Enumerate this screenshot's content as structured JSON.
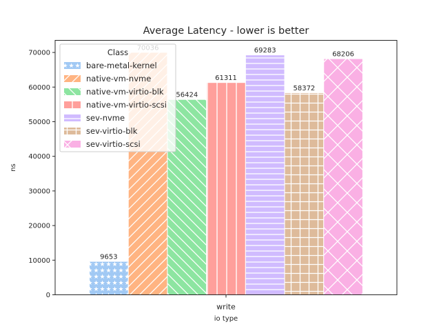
{
  "chart_data": {
    "type": "bar",
    "title": "Average Latency - lower is better",
    "xlabel": "io type",
    "ylabel": "ns",
    "categories": [
      "write"
    ],
    "ylim": [
      0,
      73500
    ],
    "yticks": [
      0,
      10000,
      20000,
      30000,
      40000,
      50000,
      60000,
      70000
    ],
    "grid": false,
    "legend": {
      "title": "Class",
      "placement": "top-left"
    },
    "series": [
      {
        "name": "bare-metal-kernel",
        "values": [
          9653
        ],
        "label": "9653",
        "color": "#a1c9f4",
        "hatch": "stars"
      },
      {
        "name": "native-vm-nvme",
        "values": [
          70036
        ],
        "label": "70036",
        "color": "#ffb482",
        "hatch": "forward-diagonal"
      },
      {
        "name": "native-vm-virtio-blk",
        "values": [
          56424
        ],
        "label": "56424",
        "color": "#8de5a1",
        "hatch": "back-diagonal"
      },
      {
        "name": "native-vm-virtio-scsi",
        "values": [
          61311
        ],
        "label": "61311",
        "color": "#ff9f9b",
        "hatch": "vertical"
      },
      {
        "name": "sev-nvme",
        "values": [
          69283
        ],
        "label": "69283",
        "color": "#d0bbff",
        "hatch": "horizontal"
      },
      {
        "name": "sev-virtio-blk",
        "values": [
          58372
        ],
        "label": "58372",
        "color": "#debb9b",
        "hatch": "grid"
      },
      {
        "name": "sev-virtio-scsi",
        "values": [
          68206
        ],
        "label": "68206",
        "color": "#fab0e4",
        "hatch": "crosshatch"
      }
    ]
  }
}
